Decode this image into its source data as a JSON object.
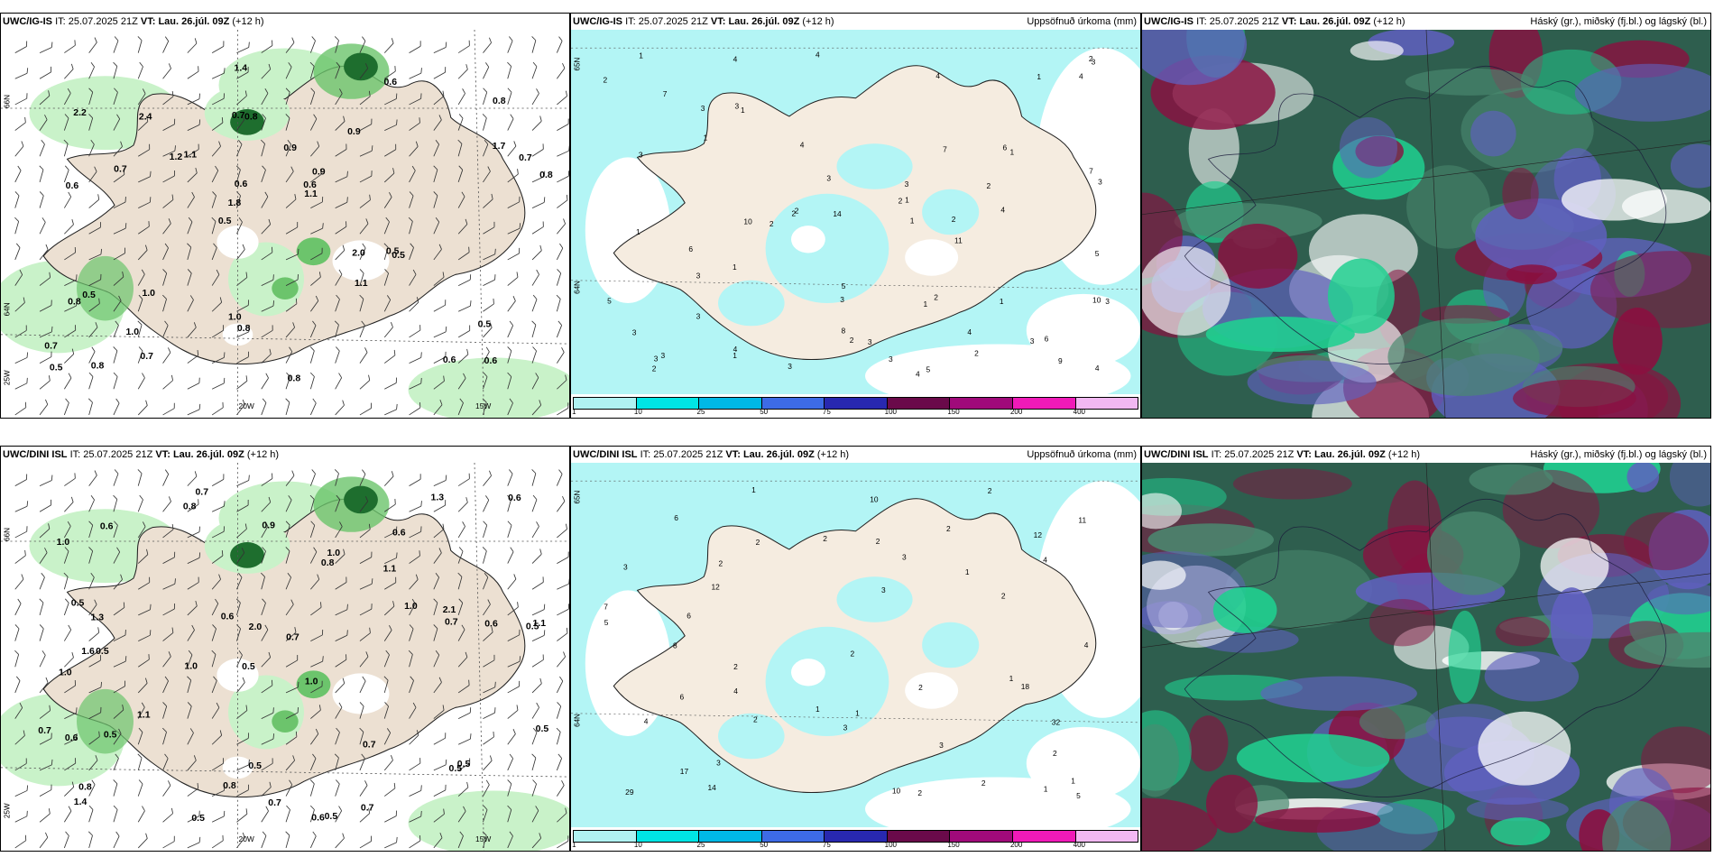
{
  "panels": [
    {
      "model": "UWC/IG-IS",
      "it_label": "IT:",
      "it": "25.07.2025 21Z",
      "vt_label": "VT:",
      "vt": "Lau. 26.júl. 09Z",
      "lead": "(+12 h)",
      "right_title": "",
      "kind": "wind",
      "grid_labels": [
        "66N",
        "20W",
        "25W",
        "15W",
        "64N"
      ],
      "values": [
        "0.6",
        "0.6",
        "0.8",
        "0.5",
        "0.9",
        "0.8",
        "0.7",
        "0.9",
        "0.5",
        "1.1",
        "0.7",
        "1.0",
        "0.8",
        "0.9",
        "0.5",
        "2.2",
        "1.4",
        "0.8",
        "2.0",
        "1.7",
        "1.8",
        "1.0",
        "0.6",
        "2.4",
        "0.6",
        "1.0",
        "0.6",
        "0.5",
        "0.5",
        "0.8",
        "1.2",
        "0.7",
        "1.1",
        "0.7",
        "0.7",
        "0.6",
        "0.5",
        "0.8",
        "1.1",
        "0.8"
      ]
    },
    {
      "model": "UWC/IG-IS",
      "it_label": "IT:",
      "it": "25.07.2025 21Z",
      "vt_label": "VT:",
      "vt": "Lau. 26.júl. 09Z",
      "lead": "(+12 h)",
      "right_title": "Uppsöfnuð úrkoma (mm)",
      "kind": "precip",
      "grid_labels": [
        "65N",
        "64N"
      ],
      "values": [
        "3",
        "4",
        "4",
        "4",
        "4",
        "7",
        "10",
        "9",
        "4",
        "4",
        "1",
        "2",
        "2",
        "3",
        "4",
        "2",
        "3",
        "1",
        "2",
        "2",
        "1",
        "3",
        "3",
        "3",
        "1",
        "6",
        "5",
        "3",
        "1",
        "11",
        "14",
        "5",
        "5",
        "4",
        "3",
        "2",
        "10",
        "3",
        "7",
        "6",
        "1",
        "2",
        "3",
        "3",
        "1",
        "2",
        "5",
        "3",
        "3",
        "8",
        "2",
        "7",
        "4",
        "1",
        "1",
        "6",
        "2",
        "3",
        "3",
        "1",
        "3",
        "2",
        "1",
        "4",
        "3",
        "2",
        "1",
        "3"
      ]
    },
    {
      "model": "UWC/IG-IS",
      "it_label": "IT:",
      "it": "25.07.2025 21Z",
      "vt_label": "VT:",
      "vt": "Lau. 26.júl. 09Z",
      "lead": "(+12 h)",
      "right_title": "Háský (gr.), miðský (fj.bl.) og lágský (bl.)",
      "kind": "cloud",
      "grid_labels": [],
      "values": []
    },
    {
      "model": "UWC/DINI ISL",
      "it_label": "IT:",
      "it": "25.07.2025 21Z",
      "vt_label": "VT:",
      "vt": "Lau. 26.júl. 09Z",
      "lead": "(+12 h)",
      "right_title": "",
      "kind": "wind",
      "grid_labels": [
        "66N",
        "20W",
        "25W",
        "15W"
      ],
      "values": [
        "0.7",
        "0.6",
        "0.5",
        "0.5",
        "1.0",
        "0.5",
        "1.0",
        "1.1",
        "1.0",
        "0.8",
        "0.7",
        "1.4",
        "0.8",
        "1.0",
        "0.6",
        "0.5",
        "0.5",
        "1.3",
        "1.0",
        "1.1",
        "1.3",
        "1.6",
        "1.1",
        "0.6",
        "0.7",
        "0.5",
        "2.0",
        "0.7",
        "0.5",
        "0.6",
        "0.5",
        "1.0",
        "0.5",
        "0.6",
        "0.7",
        "0.5",
        "2.1",
        "0.8",
        "0.6",
        "0.9",
        "0.8",
        "0.5",
        "0.7",
        "0.6",
        "0.7"
      ]
    },
    {
      "model": "UWC/DINI ISL",
      "it_label": "IT:",
      "it": "25.07.2025 21Z",
      "vt_label": "VT:",
      "vt": "Lau. 26.júl. 09Z",
      "lead": "(+12 h)",
      "right_title": "Uppsöfnuð úrkoma (mm)",
      "kind": "precip",
      "grid_labels": [
        "65N",
        "64N"
      ],
      "values": [
        "32",
        "12",
        "12",
        "18",
        "2",
        "2",
        "4",
        "2",
        "2",
        "7",
        "1",
        "2",
        "1",
        "2",
        "17",
        "6",
        "3",
        "2",
        "29",
        "3",
        "10",
        "11",
        "14",
        "5",
        "8",
        "10",
        "6",
        "5",
        "4",
        "2",
        "4",
        "1",
        "2",
        "3",
        "1",
        "1",
        "2",
        "6",
        "3",
        "1",
        "2",
        "3",
        "1",
        "2",
        "2",
        "2",
        "4",
        "3"
      ]
    },
    {
      "model": "UWC/DINI ISL",
      "it_label": "IT:",
      "it": "25.07.2025 21Z",
      "vt_label": "VT:",
      "vt": "Lau. 26.júl. 09Z",
      "lead": "(+12 h)",
      "right_title": "Háský (gr.), miðský (fj.bl.) og lágský (bl.)",
      "kind": "cloud",
      "grid_labels": [],
      "values": []
    }
  ],
  "colorbar": {
    "labels": [
      "1",
      "10",
      "25",
      "50",
      "75",
      "100",
      "150",
      "200",
      "400"
    ],
    "colors": [
      "#b0f2f2",
      "#00e5e5",
      "#00b8e6",
      "#3d6be6",
      "#2828b0",
      "#6a0a4a",
      "#a00a7a",
      "#f01ab8",
      "#f2b8f2"
    ]
  },
  "colors": {
    "land": "#f5ece0",
    "land_wind": "#ece0d2",
    "precip_light": "#b3f5f5",
    "green_light": "#c9f2c9",
    "green_mid": "#6cc46c",
    "green_dark": "#1e6e2e",
    "cloud_high": "#2e5e4e",
    "cloud_mid": "#6060c0",
    "cloud_low": "#8a1040",
    "cloud_edge": "#20d090"
  }
}
